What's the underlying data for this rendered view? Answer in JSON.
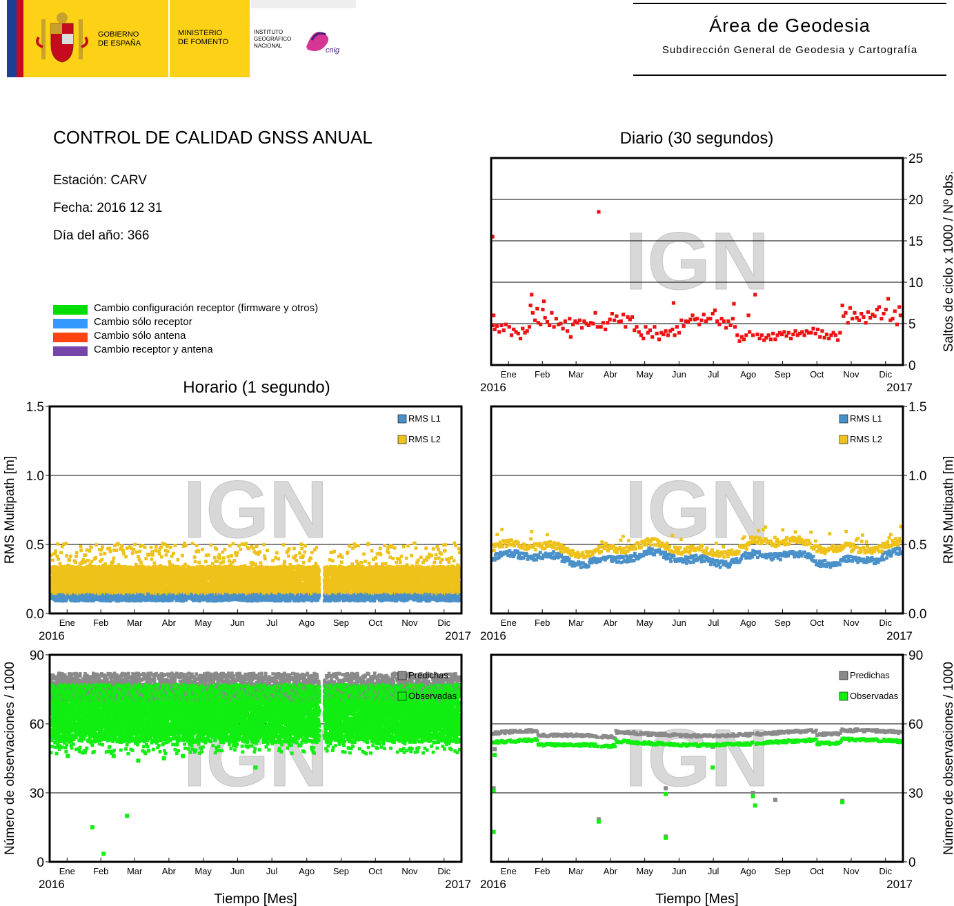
{
  "header": {
    "gov_line1": "GOBIERNO",
    "gov_line2": "DE ESPAÑA",
    "ministry_line1": "MINISTERIO",
    "ministry_line2": "DE FOMENTO",
    "institute_line1": "INSTITUTO",
    "institute_line2": "GEOGRÁFICO",
    "institute_line3": "NACIONAL",
    "cnig_label": "cnig",
    "area_title": "Área de Geodesia",
    "area_subtitle": "Subdirección General de Geodesia y Cartografía",
    "colors": {
      "flag_red": "#c60b1e",
      "flag_yellow": "#fcd116",
      "eu_blue": "#1c3f94"
    }
  },
  "report": {
    "title": "CONTROL DE CALIDAD GNSS ANUAL",
    "station": "Estación: CARV",
    "date": "Fecha: 2016 12 31",
    "doy": "Día del año: 366"
  },
  "legend": [
    {
      "label": "Cambio configuración receptor (firmware y otros)",
      "color": "#00dd00"
    },
    {
      "label": "Cambio sólo receptor",
      "color": "#3399ff"
    },
    {
      "label": "Cambio sólo antena",
      "color": "#ff4411"
    },
    {
      "label": "Cambio receptor y antena",
      "color": "#7744aa"
    }
  ],
  "section_titles": {
    "daily": "Diario (30 segundos)",
    "hourly": "Horario (1 segundo)"
  },
  "watermark": "IGN",
  "chart_data": [
    {
      "id": "slips",
      "type": "scatter",
      "title": "Diario (30 segundos)",
      "ylabel": "Saltos de ciclo x 1000 / Nº obs.",
      "ylim": [
        0,
        25
      ],
      "yticks": [
        "0",
        "5",
        "10",
        "15",
        "20",
        "25"
      ],
      "x_months": [
        "Ene",
        "Feb",
        "Mar",
        "Abr",
        "May",
        "Jun",
        "Jul",
        "Ago",
        "Sep",
        "Oct",
        "Nov",
        "Dic"
      ],
      "x_start": "2016",
      "x_end": "2017",
      "grid": true,
      "series": [
        {
          "color": "#ee1111",
          "points": [
            [
              0.1,
              15.5
            ],
            [
              0.5,
              4.8
            ],
            [
              1.0,
              6.0
            ],
            [
              2,
              4.3
            ],
            [
              4,
              4.7
            ],
            [
              6,
              4.0
            ],
            [
              8,
              4.8
            ],
            [
              10,
              4.2
            ],
            [
              12,
              4.9
            ],
            [
              15,
              4.6
            ],
            [
              17,
              3.6
            ],
            [
              19,
              4.3
            ],
            [
              21,
              4.0
            ],
            [
              23,
              3.8
            ],
            [
              25,
              3.2
            ],
            [
              27,
              4.4
            ],
            [
              29,
              3.9
            ],
            [
              31,
              4.1
            ],
            [
              33,
              4.6
            ],
            [
              34,
              7.2
            ],
            [
              35,
              8.5
            ],
            [
              36,
              6.3
            ],
            [
              38,
              5.4
            ],
            [
              40,
              6.8
            ],
            [
              41,
              5.1
            ],
            [
              43,
              4.9
            ],
            [
              45,
              6.7
            ],
            [
              46,
              7.7
            ],
            [
              47,
              5.7
            ],
            [
              49,
              5.2
            ],
            [
              51,
              4.8
            ],
            [
              53,
              6.3
            ],
            [
              55,
              4.6
            ],
            [
              57,
              5.6
            ],
            [
              59,
              4.9
            ],
            [
              61,
              5.0
            ],
            [
              63,
              4.4
            ],
            [
              65,
              5.3
            ],
            [
              67,
              4.1
            ],
            [
              69,
              5.6
            ],
            [
              70,
              3.4
            ],
            [
              72,
              4.9
            ],
            [
              74,
              5.3
            ],
            [
              76,
              5.1
            ],
            [
              78,
              5.4
            ],
            [
              80,
              4.5
            ],
            [
              82,
              5.3
            ],
            [
              84,
              5.0
            ],
            [
              86,
              4.8
            ],
            [
              88,
              5.1
            ],
            [
              90,
              5.0
            ],
            [
              92,
              6.3
            ],
            [
              94,
              4.6
            ],
            [
              95,
              18.5
            ],
            [
              97,
              4.6
            ],
            [
              99,
              5.1
            ],
            [
              101,
              4.3
            ],
            [
              103,
              5.1
            ],
            [
              105,
              5.5
            ],
            [
              107,
              6.2
            ],
            [
              109,
              5.4
            ],
            [
              111,
              5.9
            ],
            [
              113,
              5.2
            ],
            [
              115,
              5.3
            ],
            [
              117,
              6.1
            ],
            [
              119,
              4.6
            ],
            [
              121,
              5.8
            ],
            [
              123,
              5.5
            ],
            [
              125,
              5.8
            ],
            [
              127,
              4.2
            ],
            [
              129,
              4.6
            ],
            [
              131,
              4.0
            ],
            [
              133,
              3.6
            ],
            [
              135,
              3.2
            ],
            [
              137,
              4.6
            ],
            [
              139,
              3.9
            ],
            [
              141,
              4.2
            ],
            [
              143,
              3.4
            ],
            [
              145,
              4.6
            ],
            [
              147,
              3.8
            ],
            [
              149,
              3.1
            ],
            [
              151,
              3.9
            ],
            [
              153,
              3.7
            ],
            [
              155,
              4.1
            ],
            [
              157,
              3.6
            ],
            [
              159,
              4.1
            ],
            [
              161,
              4.3
            ],
            [
              162,
              7.5
            ],
            [
              163,
              3.6
            ],
            [
              165,
              4.6
            ],
            [
              167,
              3.9
            ],
            [
              169,
              5.4
            ],
            [
              171,
              4.7
            ],
            [
              173,
              5.3
            ],
            [
              175,
              5.2
            ],
            [
              177,
              5.5
            ],
            [
              179,
              6.0
            ],
            [
              181,
              5.5
            ],
            [
              183,
              5.6
            ],
            [
              185,
              4.9
            ],
            [
              187,
              5.4
            ],
            [
              189,
              6.1
            ],
            [
              191,
              5.3
            ],
            [
              193,
              5.6
            ],
            [
              195,
              5.6
            ],
            [
              197,
              6.2
            ],
            [
              199,
              6.6
            ],
            [
              201,
              5.3
            ],
            [
              203,
              4.9
            ],
            [
              205,
              5.6
            ],
            [
              207,
              5.3
            ],
            [
              209,
              4.5
            ],
            [
              211,
              5.3
            ],
            [
              213,
              4.8
            ],
            [
              215,
              5.6
            ],
            [
              216,
              7.4
            ],
            [
              217,
              4.6
            ],
            [
              219,
              3.6
            ],
            [
              221,
              2.9
            ],
            [
              223,
              3.4
            ],
            [
              225,
              3.1
            ],
            [
              227,
              3.6
            ],
            [
              229,
              6.0
            ],
            [
              230,
              4.0
            ],
            [
              233,
              3.6
            ],
            [
              235,
              8.5
            ],
            [
              237,
              3.7
            ],
            [
              239,
              3.2
            ],
            [
              241,
              3.6
            ],
            [
              243,
              3.0
            ],
            [
              245,
              3.3
            ],
            [
              247,
              3.6
            ],
            [
              249,
              3.1
            ],
            [
              251,
              3.8
            ],
            [
              253,
              3.1
            ],
            [
              255,
              3.6
            ],
            [
              257,
              3.9
            ],
            [
              259,
              3.7
            ],
            [
              261,
              4.0
            ],
            [
              263,
              3.5
            ],
            [
              265,
              3.9
            ],
            [
              267,
              3.2
            ],
            [
              269,
              3.7
            ],
            [
              271,
              4.1
            ],
            [
              273,
              3.6
            ],
            [
              275,
              3.8
            ],
            [
              277,
              4.0
            ],
            [
              279,
              3.6
            ],
            [
              281,
              4.1
            ],
            [
              283,
              3.9
            ],
            [
              285,
              3.9
            ],
            [
              287,
              4.4
            ],
            [
              289,
              3.8
            ],
            [
              291,
              4.3
            ],
            [
              293,
              3.4
            ],
            [
              295,
              4.1
            ],
            [
              297,
              3.3
            ],
            [
              299,
              3.7
            ],
            [
              301,
              3.2
            ],
            [
              303,
              3.6
            ],
            [
              305,
              3.9
            ],
            [
              307,
              3.6
            ],
            [
              309,
              3.0
            ],
            [
              311,
              3.9
            ],
            [
              313,
              7.2
            ],
            [
              314,
              5.9
            ],
            [
              316,
              6.3
            ],
            [
              318,
              5.1
            ],
            [
              320,
              6.9
            ],
            [
              322,
              5.6
            ],
            [
              324,
              6.3
            ],
            [
              326,
              5.7
            ],
            [
              328,
              5.4
            ],
            [
              330,
              6.2
            ],
            [
              332,
              5.8
            ],
            [
              334,
              5.1
            ],
            [
              336,
              6.4
            ],
            [
              338,
              5.7
            ],
            [
              340,
              6.1
            ],
            [
              342,
              5.9
            ],
            [
              344,
              6.7
            ],
            [
              346,
              7.0
            ],
            [
              348,
              5.6
            ],
            [
              350,
              6.2
            ],
            [
              352,
              6.7
            ],
            [
              354,
              8.0
            ],
            [
              356,
              5.4
            ],
            [
              358,
              5.6
            ],
            [
              360,
              6.5
            ],
            [
              362,
              4.9
            ],
            [
              364,
              7.0
            ],
            [
              365,
              6.0
            ]
          ]
        }
      ]
    },
    {
      "id": "mp_hourly",
      "type": "scatter",
      "title": "Horario (1 segundo)",
      "ylabel": "RMS Multipath [m]",
      "ylim": [
        0,
        1.5
      ],
      "yticks": [
        "0.0",
        "0.5",
        "1.0",
        "1.5"
      ],
      "x_months": [
        "Ene",
        "Feb",
        "Mar",
        "Abr",
        "May",
        "Jun",
        "Jul",
        "Ago",
        "Sep",
        "Oct",
        "Nov",
        "Dic"
      ],
      "x_start": "2016",
      "x_end": "2017",
      "grid": true,
      "gap_days": [
        240,
        244
      ],
      "series": [
        {
          "name": "RMS L1",
          "color": "#4a90c9",
          "band": [
            0.09,
            0.14
          ]
        },
        {
          "name": "RMS L2",
          "color": "#eec21a",
          "band": [
            0.14,
            0.34
          ],
          "outliers_max": 0.51
        }
      ]
    },
    {
      "id": "mp_daily",
      "type": "scatter",
      "ylabel": "RMS Multipath [m]",
      "ylim": [
        0,
        1.5
      ],
      "yticks": [
        "0.0",
        "0.5",
        "1.0",
        "1.5"
      ],
      "x_months": [
        "Ene",
        "Feb",
        "Mar",
        "Abr",
        "May",
        "Jun",
        "Jul",
        "Ago",
        "Sep",
        "Oct",
        "Nov",
        "Dic"
      ],
      "x_start": "2016",
      "x_end": "2017",
      "grid": true,
      "series": [
        {
          "name": "RMS L1",
          "color": "#4a90c9",
          "level": 0.4
        },
        {
          "name": "RMS L2",
          "color": "#eec21a",
          "level": 0.47
        }
      ]
    },
    {
      "id": "obs_hourly",
      "type": "scatter",
      "ylabel": "Número de observaciones / 1000",
      "xlabel": "Tiempo [Mes]",
      "ylim": [
        0,
        90
      ],
      "yticks": [
        "0",
        "30",
        "60",
        "90"
      ],
      "x_months": [
        "Ene",
        "Feb",
        "Mar",
        "Abr",
        "May",
        "Jun",
        "Jul",
        "Ago",
        "Sep",
        "Oct",
        "Nov",
        "Dic"
      ],
      "x_start": "2016",
      "x_end": "2017",
      "grid": true,
      "gap_days": [
        240,
        244
      ],
      "series": [
        {
          "name": "Predichas",
          "color": "#8a8a8a",
          "band": [
            70,
            82
          ]
        },
        {
          "name": "Observadas",
          "color": "#11ee11",
          "band": [
            52,
            77
          ],
          "outliers": [
            [
              37,
              15
            ],
            [
              47,
              3.5
            ],
            [
              68,
              20
            ],
            [
              15,
              46
            ],
            [
              56,
              46
            ],
            [
              78,
              44
            ],
            [
              101,
              45
            ],
            [
              118,
              46
            ],
            [
              183,
              41
            ]
          ]
        }
      ]
    },
    {
      "id": "obs_daily",
      "type": "scatter",
      "ylabel": "Número de observaciones / 1000",
      "xlabel": "Tiempo [Mes]",
      "ylim": [
        0,
        90
      ],
      "yticks": [
        "0",
        "30",
        "60",
        "90"
      ],
      "x_months": [
        "Ene",
        "Feb",
        "Mar",
        "Abr",
        "May",
        "Jun",
        "Jul",
        "Ago",
        "Sep",
        "Oct",
        "Nov",
        "Dic"
      ],
      "x_start": "2016",
      "x_end": "2017",
      "grid": true,
      "series": [
        {
          "name": "Predichas",
          "color": "#8a8a8a",
          "level": 56,
          "outliers": [
            [
              1,
              32
            ],
            [
              2,
              49
            ],
            [
              95,
              18.5
            ],
            [
              155,
              11
            ],
            [
              155,
              32
            ],
            [
              197,
              50
            ],
            [
              233,
              30
            ],
            [
              253,
              27
            ],
            [
              313,
              26.5
            ]
          ]
        },
        {
          "name": "Observadas",
          "color": "#11ee11",
          "level": 52,
          "outliers": [
            [
              1,
              13
            ],
            [
              1,
              31
            ],
            [
              2,
              46.5
            ],
            [
              95,
              17.5
            ],
            [
              155,
              10.5
            ],
            [
              155,
              29.5
            ],
            [
              197,
              41
            ],
            [
              233,
              28.5
            ],
            [
              235,
              24.5
            ],
            [
              313,
              26
            ]
          ]
        }
      ]
    }
  ]
}
